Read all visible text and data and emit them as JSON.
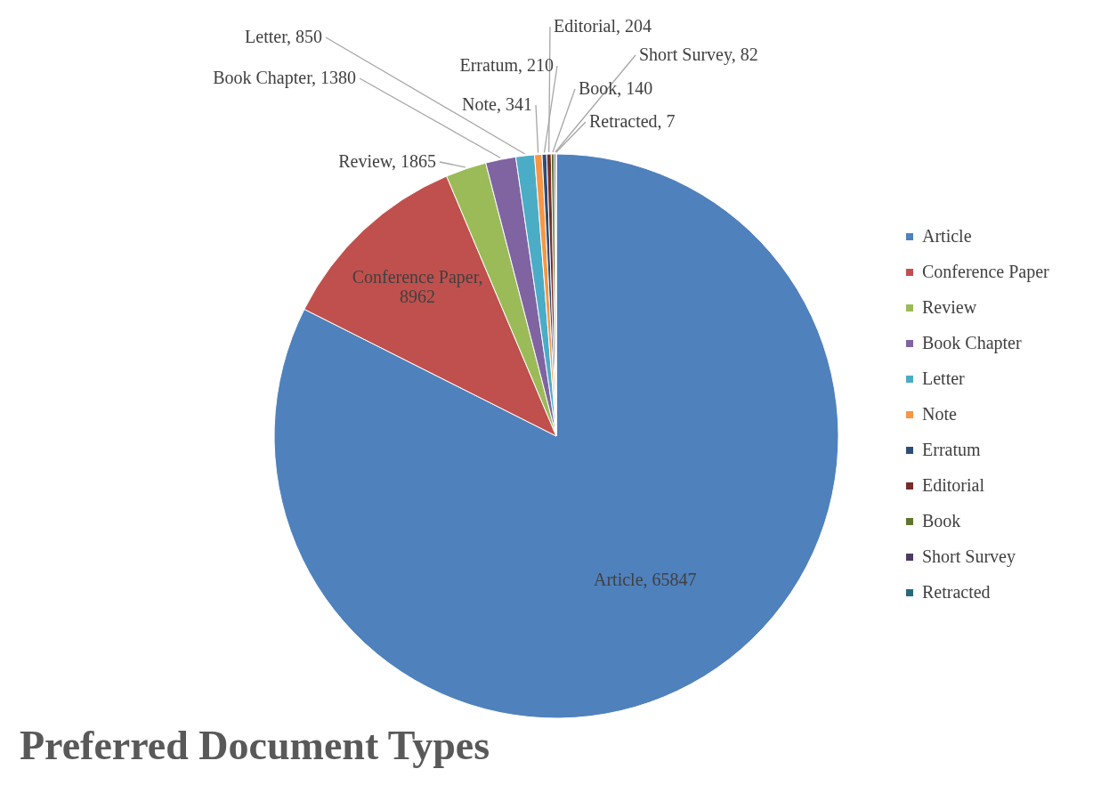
{
  "chart_data": {
    "type": "pie",
    "title": "Preferred Document Types",
    "categories": [
      "Article",
      "Conference Paper",
      "Review",
      "Book Chapter",
      "Letter",
      "Note",
      "Erratum",
      "Editorial",
      "Book",
      "Short Survey",
      "Retracted"
    ],
    "values": [
      65847,
      8962,
      1865,
      1380,
      850,
      341,
      210,
      204,
      140,
      82,
      7
    ],
    "value_labels": [
      "Article, 65847",
      "Conference Paper, 8962",
      "Review, 1865",
      "Book Chapter, 1380",
      "Letter, 850",
      "Note, 341",
      "Erratum, 210",
      "Editorial, 204",
      "Book, 140",
      "Short Survey, 82",
      "Retracted, 7"
    ],
    "colors": [
      "#4f81bd",
      "#c0504d",
      "#9bbb59",
      "#8064a2",
      "#4bacc6",
      "#f79646",
      "#2c4d75",
      "#772c2a",
      "#5f7530",
      "#4d3b62",
      "#276a7c"
    ],
    "legend": "right"
  }
}
